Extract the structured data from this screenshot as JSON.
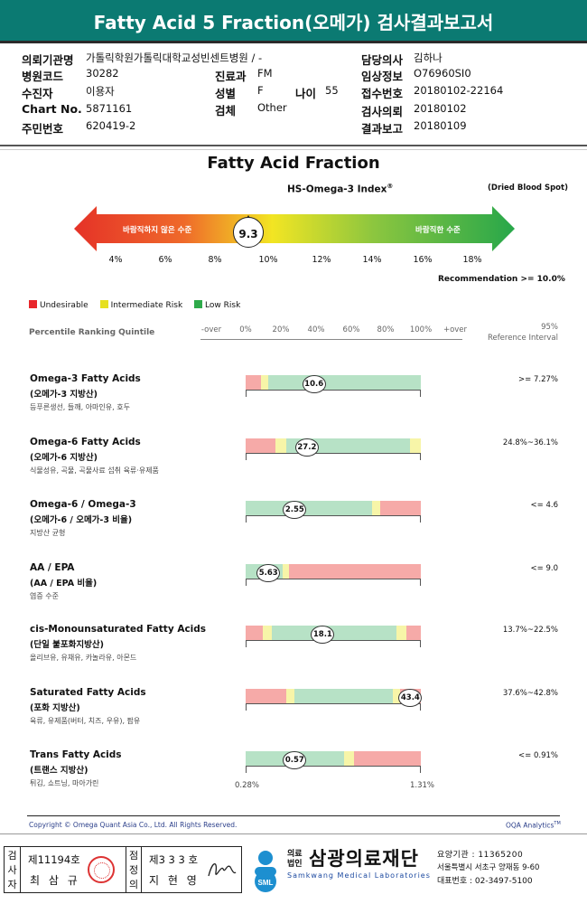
{
  "report_title": "Fatty Acid 5 Fraction(오메가) 검사결과보고서",
  "info": {
    "institution_label": "의뢰기관명",
    "institution": "가톨릭학원가톨릭대학교성빈센트병원 / -",
    "hospital_code_label": "병원코드",
    "hospital_code": "30282",
    "dept_label": "진료과",
    "dept": "FM",
    "recipient_label": "수진자",
    "recipient": "이용자",
    "sex_label": "성별",
    "sex": "F",
    "age_label": "나이",
    "age": "55",
    "chart_label": "Chart No.",
    "chart": "5871161",
    "specimen_label": "검체",
    "specimen": "Other",
    "rrn_label": "주민번호",
    "rrn": "620419-2",
    "doctor_label": "담당의사",
    "doctor": "김하나",
    "clinical_label": "임상정보",
    "clinical": "O76960SI0",
    "receipt_label": "접수번호",
    "receipt": "20180102-22164",
    "request_label": "검사의뢰",
    "request": "20180102",
    "result_label": "결과보고",
    "result": "20180109"
  },
  "section_title": "Fatty Acid Fraction",
  "index_title": "HS-Omega-3 Index",
  "index_sup": "®",
  "dried_blood_spot": "(Dried Blood Spot)",
  "arrow": {
    "left_label": "바람직하지 않은 수준",
    "right_label": "바람직한 수준",
    "value": "9.3",
    "ticks": [
      "4%",
      "6%",
      "8%",
      "10%",
      "12%",
      "14%",
      "16%",
      "18%"
    ]
  },
  "recommendation": "Recommendation  >= 10.0%",
  "legend": [
    {
      "label": "Undesirable",
      "color": "#e8262b"
    },
    {
      "label": "Intermediate Risk",
      "color": "#e6e020"
    },
    {
      "label": "Low Risk",
      "color": "#2eaa4a"
    }
  ],
  "quintile_head": "Percentile Ranking Quintile",
  "quintile_ticks": [
    "-over",
    "0%",
    "20%",
    "40%",
    "60%",
    "80%",
    "100%",
    "+over"
  ],
  "ref_head": [
    "95%",
    "Reference Interval"
  ],
  "colors": {
    "red": "#f6aaa8",
    "yellow": "#f7f5a8",
    "green": "#b7e2c6"
  },
  "rows": [
    {
      "name": "Omega-3 Fatty Acids",
      "kname": "(오메가-3 지방산)",
      "desc": "등푸른생선, 들깨, 아마인유, 호두",
      "value": "10.6",
      "ref": ">= 7.27%",
      "segments": [
        [
          "red",
          9
        ],
        [
          "yellow",
          4
        ],
        [
          "green",
          87
        ]
      ],
      "marker": 39
    },
    {
      "name": "Omega-6 Fatty Acids",
      "kname": "(오메가-6 지방산)",
      "desc": "식물성유, 곡물, 곡물사료 섭취 육류·유제품",
      "value": "27.2",
      "ref": "24.8%~36.1%",
      "segments": [
        [
          "red",
          17
        ],
        [
          "yellow",
          6
        ],
        [
          "green",
          71
        ],
        [
          "yellow",
          6
        ]
      ],
      "marker": 35
    },
    {
      "name": "Omega-6 / Omega-3",
      "kname": "(오메가-6 / 오메가-3 비율)",
      "desc": "지방산 균형",
      "value": "2.55",
      "ref": "<= 4.6",
      "segments": [
        [
          "green",
          72
        ],
        [
          "yellow",
          5
        ],
        [
          "red",
          23
        ]
      ],
      "marker": 28
    },
    {
      "name": "AA / EPA",
      "kname": "(AA / EPA 비율)",
      "desc": "염증 수준",
      "value": "5.63",
      "ref": "<= 9.0",
      "segments": [
        [
          "green",
          21
        ],
        [
          "yellow",
          4
        ],
        [
          "red",
          75
        ]
      ],
      "marker": 13
    },
    {
      "name": "cis-Monounsaturated Fatty Acids",
      "kname": "(단일 불포화지방산)",
      "desc": "올리브유, 유채유, 카놀라유, 아몬드",
      "value": "18.1",
      "ref": "13.7%~22.5%",
      "segments": [
        [
          "red",
          10
        ],
        [
          "yellow",
          5
        ],
        [
          "green",
          71
        ],
        [
          "yellow",
          6
        ],
        [
          "red",
          8
        ]
      ],
      "marker": 44
    },
    {
      "name": "Saturated Fatty Acids",
      "kname": "(포화 지방산)",
      "desc": "육류, 유제품(버터, 치즈, 우유), 팜유",
      "value": "43.4",
      "ref": "37.6%~42.8%",
      "segments": [
        [
          "red",
          23
        ],
        [
          "yellow",
          5
        ],
        [
          "green",
          56
        ],
        [
          "yellow",
          4
        ],
        [
          "red",
          12
        ]
      ],
      "marker": 94
    },
    {
      "name": "Trans Fatty Acids",
      "kname": "(트랜스 지방산)",
      "desc": "튀김, 쇼트닝, 마아가린",
      "value": "0.57",
      "ref": "<= 0.91%",
      "segments": [
        [
          "green",
          56
        ],
        [
          "yellow",
          6
        ],
        [
          "red",
          38
        ]
      ],
      "marker": 28
    }
  ],
  "trans_min": "0.28%",
  "trans_max": "1.31%",
  "copyright": "Copyright © Omega Quant Asia Co., Ltd.  All Rights Reserved.",
  "oqa": "OQA Analytics",
  "oqa_sup": "TM",
  "signatures": {
    "exam_label": [
      "검",
      "사",
      "자"
    ],
    "exam_num": "제11194호",
    "exam_name": "최 삼 규",
    "check_label": [
      "점",
      "정",
      "의"
    ],
    "check_num": "제3 3 3 호",
    "check_name": "지 현 영"
  },
  "org": {
    "small_top": "의료",
    "small_bottom": "법인",
    "name": "삼광의료재단",
    "english": "Samkwang Medical Laboratories",
    "logo_text": "SML",
    "code": "요양기관 : 11365200",
    "address": "서울특별시 서초구 양재동 9-60",
    "phone": "대표번호 : 02-3497-5100"
  }
}
